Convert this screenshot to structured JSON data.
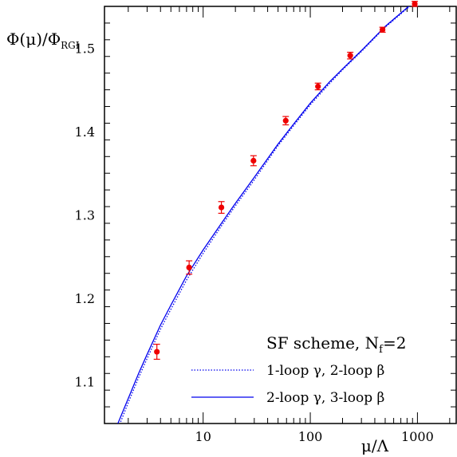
{
  "chart_data": {
    "type": "line",
    "ylabel": "Φ(μ)/Φ",
    "ylabel_sub": "RGI",
    "xlabel": "μ/Λ",
    "x_scale": "log",
    "xlim": [
      1.2,
      2300
    ],
    "ylim": [
      1.05,
      1.55
    ],
    "x_ticks": [
      10,
      100,
      1000
    ],
    "x_tick_labels": [
      "10",
      "100",
      "1000"
    ],
    "y_ticks": [
      1.1,
      1.2,
      1.3,
      1.4,
      1.5
    ],
    "y_tick_labels": [
      "1.1",
      "1.2",
      "1.3",
      "1.4",
      "1.5"
    ],
    "legend_title": "SF scheme, N",
    "legend_title_sub": "f",
    "legend_title_suffix": "=2",
    "legend_placement": "bottom-right",
    "colors": {
      "data": "#ee0000",
      "curve": "#0000ee"
    },
    "points": {
      "x": [
        3.7,
        7.4,
        14.8,
        29.5,
        59,
        118,
        236,
        472,
        944
      ],
      "y": [
        1.136,
        1.237,
        1.309,
        1.365,
        1.413,
        1.454,
        1.491,
        1.522,
        1.553
      ],
      "err": [
        0.009,
        0.008,
        0.007,
        0.006,
        0.005,
        0.004,
        0.004,
        0.003,
        0.003
      ]
    },
    "series": [
      {
        "name": "1-loop γ, 2-loop β",
        "style": "dotted",
        "x": [
          1.7,
          2,
          2.5,
          3,
          4,
          5,
          7,
          10,
          15,
          20,
          30,
          50,
          70,
          100,
          150,
          200,
          300,
          500,
          700,
          1000,
          1500,
          2300
        ],
        "y": [
          1.052,
          1.075,
          1.105,
          1.128,
          1.163,
          1.187,
          1.222,
          1.254,
          1.288,
          1.311,
          1.342,
          1.383,
          1.407,
          1.432,
          1.457,
          1.474,
          1.496,
          1.525,
          1.541,
          1.558,
          1.576,
          1.593
        ]
      },
      {
        "name": "2-loop γ, 3-loop β",
        "style": "solid",
        "x": [
          1.6,
          2,
          2.5,
          3,
          4,
          5,
          7,
          10,
          15,
          20,
          30,
          50,
          70,
          100,
          150,
          200,
          300,
          500,
          700,
          1000,
          1500,
          2300
        ],
        "y": [
          1.05,
          1.08,
          1.11,
          1.133,
          1.168,
          1.192,
          1.227,
          1.258,
          1.291,
          1.314,
          1.345,
          1.385,
          1.409,
          1.434,
          1.459,
          1.475,
          1.497,
          1.526,
          1.542,
          1.559,
          1.577,
          1.594
        ]
      }
    ]
  }
}
